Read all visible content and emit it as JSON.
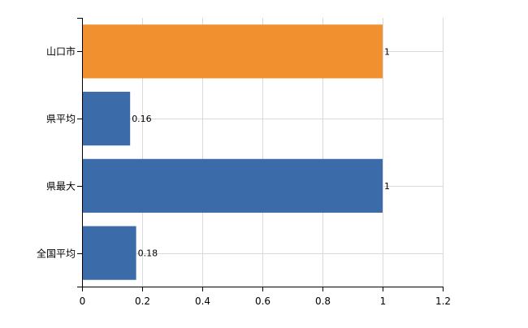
{
  "chart_data": {
    "type": "bar",
    "orientation": "horizontal",
    "title": "",
    "xlabel": "",
    "ylabel": "",
    "categories": [
      "山口市",
      "県平均",
      "県最大",
      "全国平均"
    ],
    "values": [
      1,
      0.16,
      1,
      0.18
    ],
    "value_labels": [
      "1",
      "0.16",
      "1",
      "0.18"
    ],
    "bar_colors": [
      "#f0902f",
      "#3b6ba8",
      "#3b6ba8",
      "#3b6ba8"
    ],
    "xlim": [
      0,
      1.2
    ],
    "xticks": [
      0,
      0.2,
      0.4,
      0.6,
      0.8,
      1,
      1.2
    ],
    "xtick_labels": [
      "0",
      "0.2",
      "0.4",
      "0.6",
      "0.8",
      "1",
      "1.2"
    ],
    "grid": true,
    "legend": "none"
  }
}
